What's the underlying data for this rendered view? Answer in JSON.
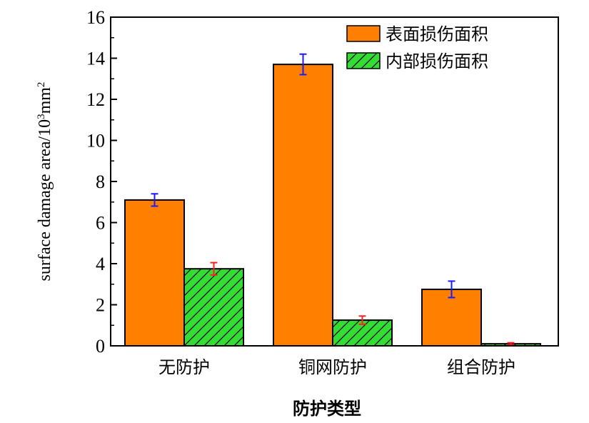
{
  "chart_data": {
    "type": "bar",
    "categories": [
      "无防护",
      "铜网防护",
      "组合防护"
    ],
    "series": [
      {
        "name": "表面损伤面积",
        "values": [
          7.1,
          13.7,
          2.75
        ],
        "errors": [
          0.3,
          0.5,
          0.4
        ],
        "color": "#ff8000",
        "error_color": "#1a1aff",
        "pattern": "solid"
      },
      {
        "name": "内部损伤面积",
        "values": [
          3.75,
          1.25,
          0.1
        ],
        "errors": [
          0.3,
          0.2,
          0.05
        ],
        "color": "#33dd33",
        "error_color": "#ff2020",
        "pattern": "hatched"
      }
    ],
    "xlabel": "防护类型",
    "ylabel": {
      "base": "surface damage area/10",
      "sup1": "3",
      "unit": "mm",
      "sup2": "2"
    },
    "ylim": [
      0,
      16
    ],
    "yticks": [
      "0",
      "2",
      "4",
      "6",
      "8",
      "10",
      "12",
      "14",
      "16"
    ],
    "legend_position": "top-right",
    "grid": false
  }
}
